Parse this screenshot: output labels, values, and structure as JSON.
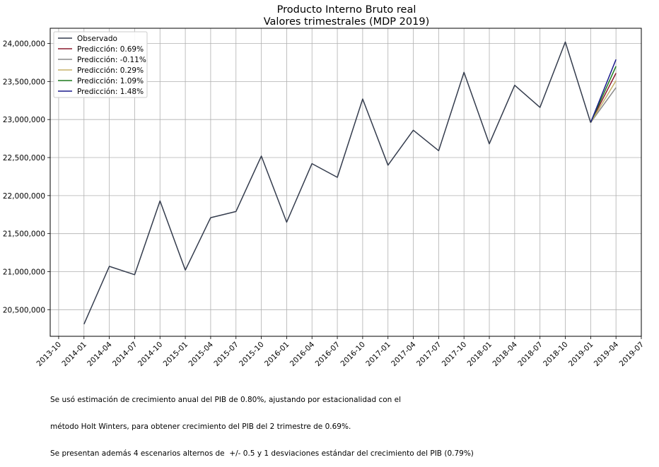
{
  "chart_data": {
    "type": "line",
    "title": [
      "Producto Interno Bruto real",
      "Valores trimestrales (MDP 2019)"
    ],
    "xlabel": "",
    "ylabel": "",
    "x_ticks": [
      "2013-10",
      "2014-01",
      "2014-04",
      "2014-07",
      "2014-10",
      "2015-01",
      "2015-04",
      "2015-07",
      "2015-10",
      "2016-01",
      "2016-04",
      "2016-07",
      "2016-10",
      "2017-01",
      "2017-04",
      "2017-07",
      "2017-10",
      "2018-01",
      "2018-04",
      "2018-07",
      "2018-10",
      "2019-01",
      "2019-04",
      "2019-07"
    ],
    "y_ticks": [
      20500000,
      21000000,
      21500000,
      22000000,
      22500000,
      23000000,
      23500000,
      24000000
    ],
    "y_tick_labels": [
      "20,500,000",
      "21,000,000",
      "21,500,000",
      "22,000,000",
      "22,500,000",
      "23,000,000",
      "23,500,000",
      "24,000,000"
    ],
    "xlim": [
      "2013-09",
      "2019-07"
    ],
    "ylim": [
      20150000,
      24200000
    ],
    "grid": true,
    "legend_position": "top-left",
    "series": [
      {
        "name": "Observado",
        "color": "#343c4d",
        "x": [
          "2014-01",
          "2014-04",
          "2014-07",
          "2014-10",
          "2015-01",
          "2015-04",
          "2015-07",
          "2015-10",
          "2016-01",
          "2016-04",
          "2016-07",
          "2016-10",
          "2017-01",
          "2017-04",
          "2017-07",
          "2017-10",
          "2018-01",
          "2018-04",
          "2018-07",
          "2018-10",
          "2019-01"
        ],
        "values": [
          20310000,
          21070000,
          20960000,
          21930000,
          21020000,
          21710000,
          21790000,
          22520000,
          21650000,
          22420000,
          22240000,
          23270000,
          22400000,
          22860000,
          22590000,
          23620000,
          22680000,
          23450000,
          23160000,
          24020000,
          22960000
        ]
      },
      {
        "name": "Predicción: 0.69%",
        "color": "#8b1a2e",
        "x": [
          "2019-01",
          "2019-04"
        ],
        "values": [
          22960000,
          23610000
        ]
      },
      {
        "name": "Predicción: -0.11%",
        "color": "#8a8a8a",
        "x": [
          "2019-01",
          "2019-04"
        ],
        "values": [
          22960000,
          23420000
        ]
      },
      {
        "name": "Predicción: 0.29%",
        "color": "#c7b26a",
        "x": [
          "2019-01",
          "2019-04"
        ],
        "values": [
          22960000,
          23510000
        ]
      },
      {
        "name": "Predicción: 1.09%",
        "color": "#1f7a1f",
        "x": [
          "2019-01",
          "2019-04"
        ],
        "values": [
          22960000,
          23700000
        ]
      },
      {
        "name": "Predicción: 1.48%",
        "color": "#1a1a8c",
        "x": [
          "2019-01",
          "2019-04"
        ],
        "values": [
          22960000,
          23790000
        ]
      }
    ]
  },
  "footnote": [
    "Se usó estimación de crecimiento anual del PIB de 0.80%, ajustando por estacionalidad con el",
    "método Holt Winters, para obtener crecimiento del PIB del 2 trimestre de 0.69%.",
    "Se presentan además 4 escenarios alternos de  +/- 0.5 y 1 desviaciones estándar del crecimiento del PIB (0.79%)"
  ]
}
